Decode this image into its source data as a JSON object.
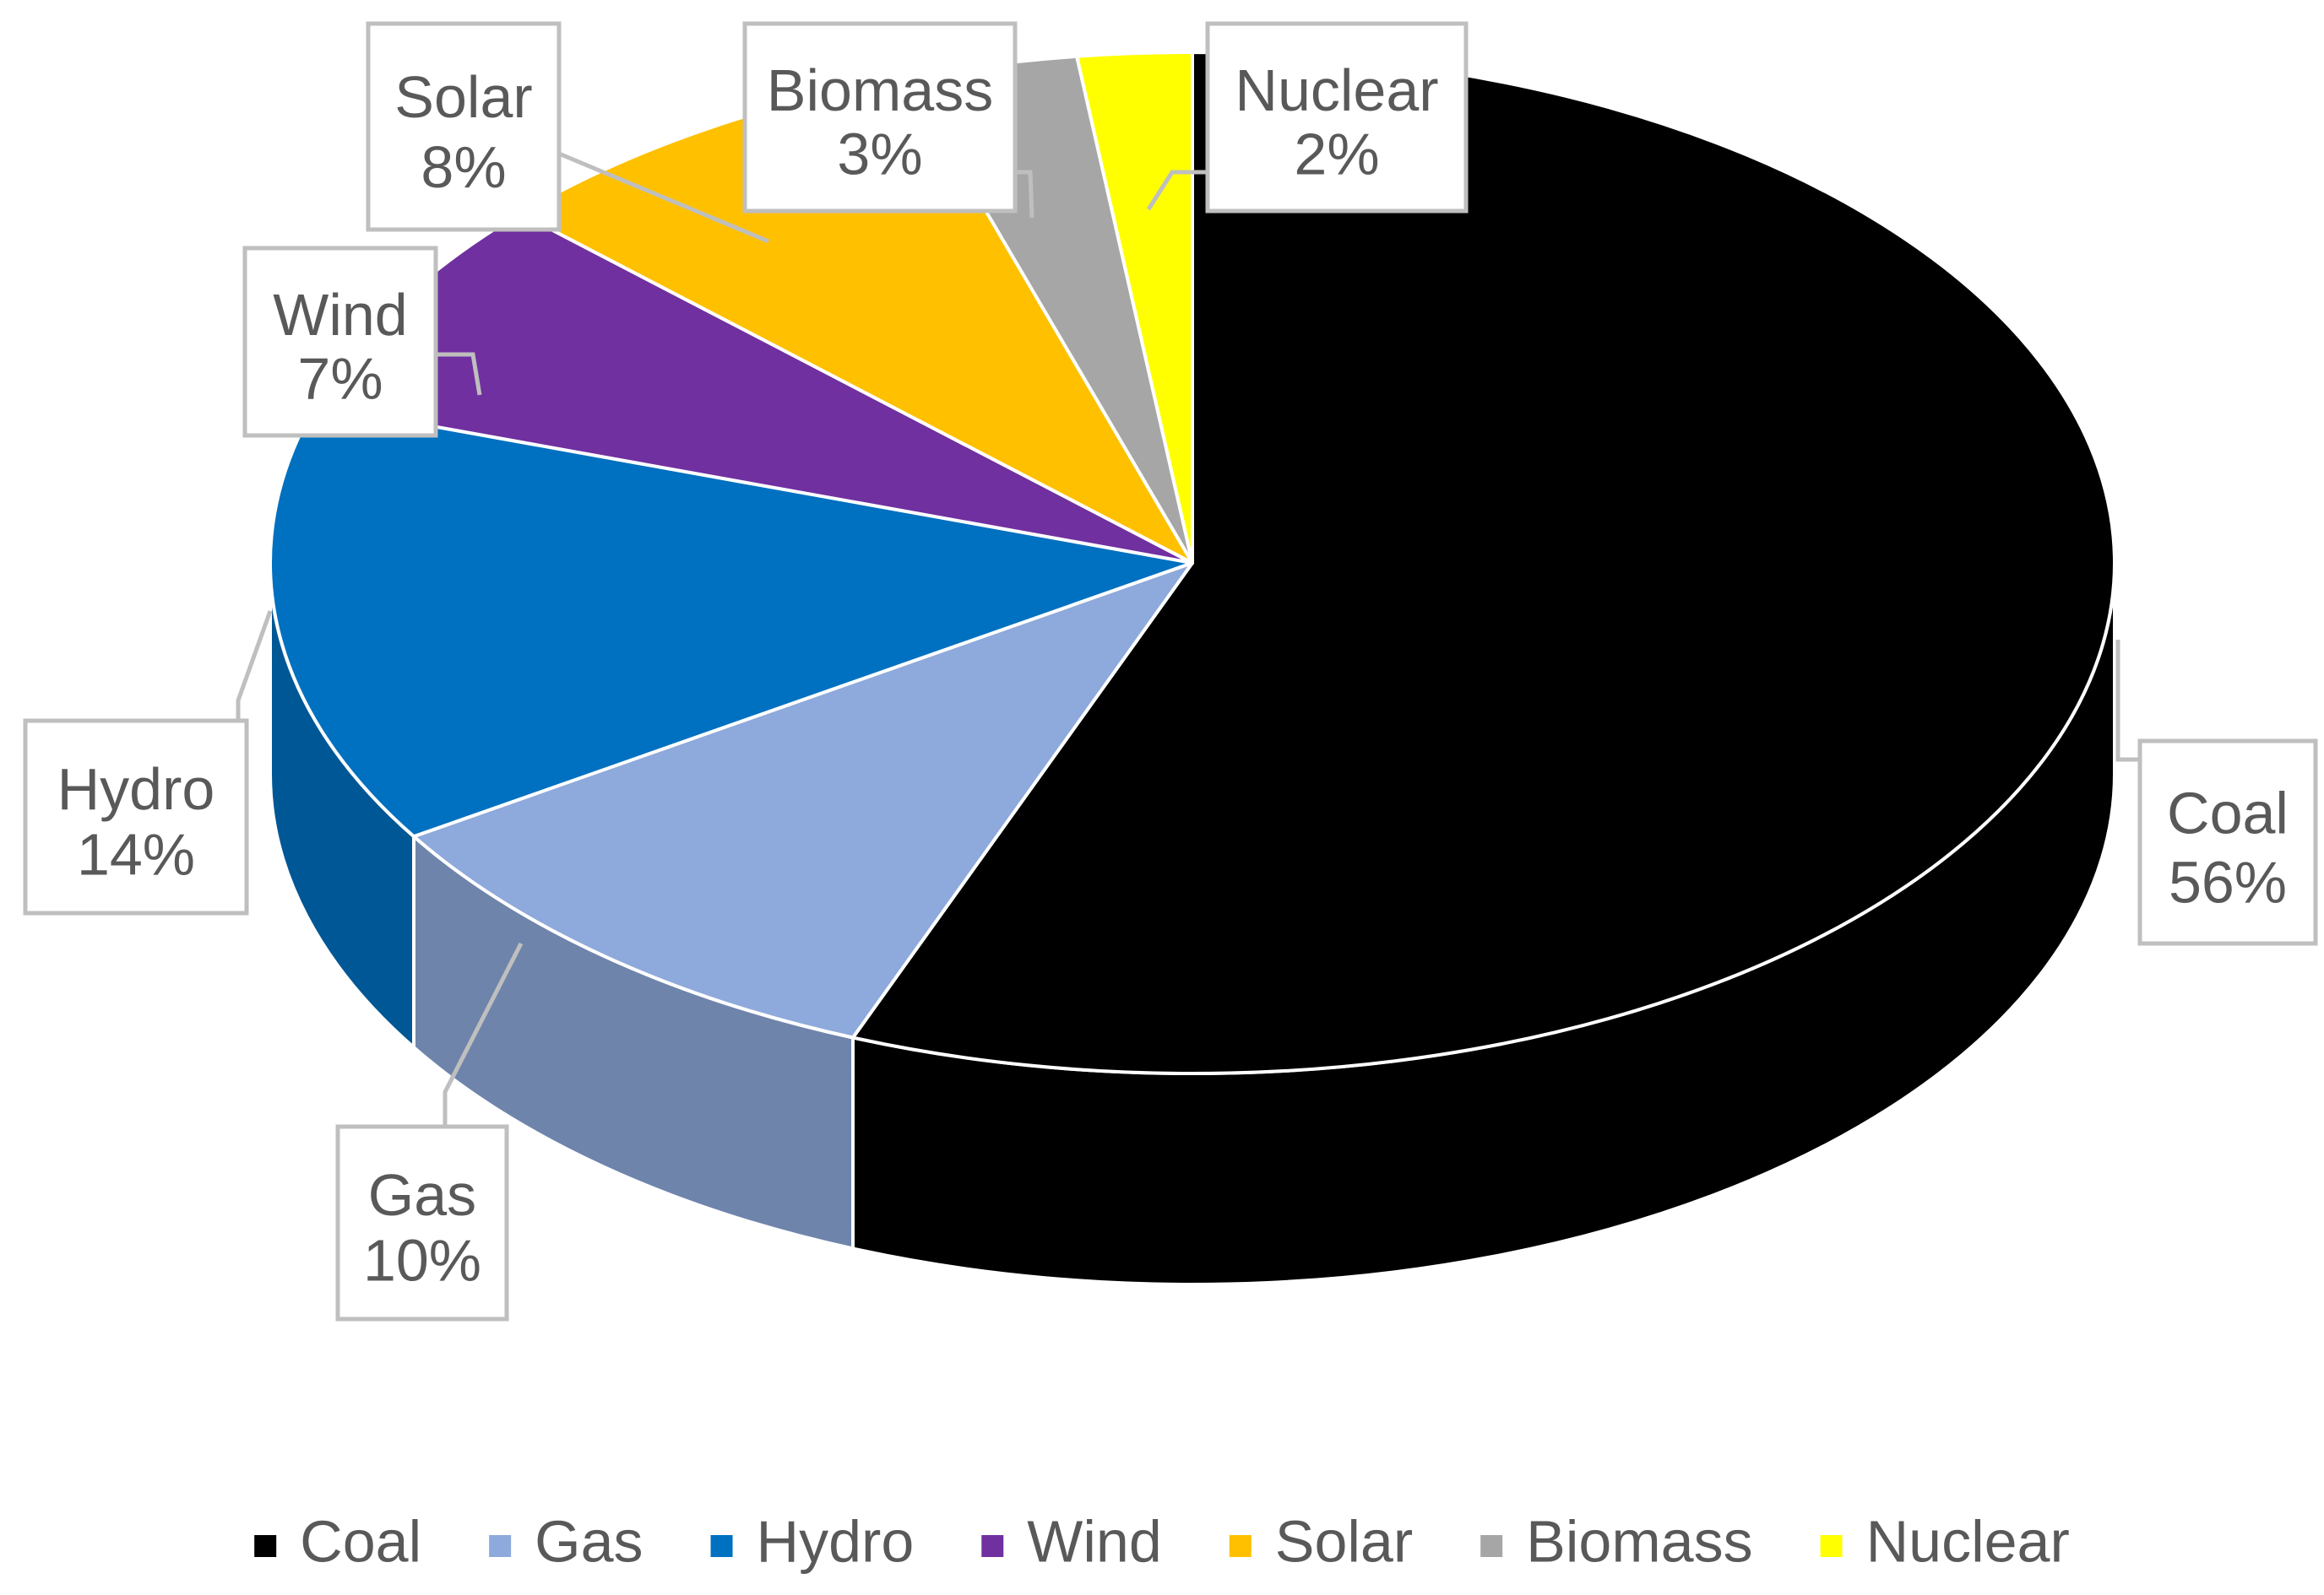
{
  "chart_data": {
    "type": "pie",
    "style": "3d-exploded-disc",
    "title": "",
    "legend_position": "bottom",
    "slices": [
      {
        "name": "Coal",
        "value": 56,
        "label": "56%",
        "color": "#000000"
      },
      {
        "name": "Gas",
        "value": 10,
        "label": "10%",
        "color": "#8EA9DB"
      },
      {
        "name": "Hydro",
        "value": 14,
        "label": "14%",
        "color": "#0070C0"
      },
      {
        "name": "Wind",
        "value": 7,
        "label": "7%",
        "color": "#7030A0"
      },
      {
        "name": "Solar",
        "value": 8,
        "label": "8%",
        "color": "#FFC000"
      },
      {
        "name": "Biomass",
        "value": 3,
        "label": "3%",
        "color": "#A6A6A6"
      },
      {
        "name": "Nuclear",
        "value": 2,
        "label": "2%",
        "color": "#FFFF00"
      }
    ]
  }
}
